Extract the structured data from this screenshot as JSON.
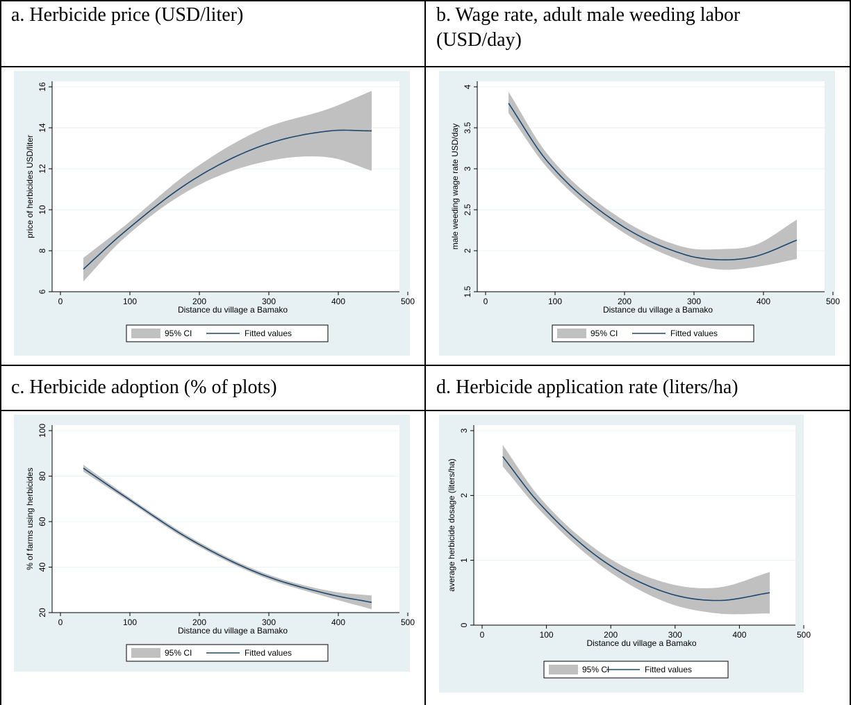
{
  "cells": {
    "a": "a. Herbicide price (USD/liter)",
    "b": "b. Wage rate, adult male weeding labor (USD/day)",
    "c": "c. Herbicide adoption (% of plots)",
    "d": "d. Herbicide application rate (liters/ha)"
  },
  "colors": {
    "fit_line": "#1a476f",
    "ci_band": "#c0c0c0",
    "panel_bg": "#e7f0f2",
    "plot_bg": "#ffffff"
  },
  "chart_data": [
    {
      "id": "a",
      "type": "area",
      "xlabel": "Distance du village a Bamako",
      "ylabel": "price of herbicides USD/liter",
      "xlim": [
        0,
        500
      ],
      "ylim": [
        6,
        16
      ],
      "xticks": [
        0,
        100,
        200,
        300,
        400,
        500
      ],
      "yticks": [
        6,
        8,
        10,
        12,
        14,
        16
      ],
      "legend": [
        "95% CI",
        "Fitted values"
      ],
      "legend_position": "bottom",
      "grid": true,
      "x": [
        45,
        100,
        200,
        300,
        400,
        460
      ],
      "fitted": [
        7.1,
        8.8,
        11.4,
        13.1,
        13.85,
        13.85
      ],
      "ci_lower": [
        6.5,
        8.5,
        11.0,
        12.3,
        12.55,
        11.9
      ],
      "ci_upper": [
        7.65,
        9.1,
        11.9,
        13.9,
        14.95,
        15.8
      ]
    },
    {
      "id": "b",
      "type": "area",
      "xlabel": "Distance du village a Bamako",
      "ylabel": "male weeding wage rate USD/day",
      "xlim": [
        0,
        500
      ],
      "ylim": [
        1.5,
        4
      ],
      "xticks": [
        0,
        100,
        200,
        300,
        400,
        500
      ],
      "yticks": [
        1.5,
        2,
        2.5,
        3,
        3.5,
        4
      ],
      "legend": [
        "95% CI",
        "Fitted values"
      ],
      "legend_position": "bottom",
      "grid": true,
      "x": [
        45,
        100,
        200,
        300,
        350,
        400,
        460
      ],
      "fitted": [
        3.8,
        3.1,
        2.35,
        1.95,
        1.89,
        1.93,
        2.13
      ],
      "ci_lower": [
        3.68,
        3.02,
        2.28,
        1.86,
        1.77,
        1.8,
        1.9
      ],
      "ci_upper": [
        3.94,
        3.19,
        2.43,
        2.04,
        2.02,
        2.07,
        2.38
      ]
    },
    {
      "id": "c",
      "type": "area",
      "xlabel": "Distance du village a Bamako",
      "ylabel": "% of farms using herbicides",
      "xlim": [
        0,
        500
      ],
      "ylim": [
        20,
        100
      ],
      "xticks": [
        0,
        100,
        200,
        300,
        400,
        500
      ],
      "yticks": [
        20,
        40,
        60,
        80,
        100
      ],
      "legend": [
        "95% CI",
        "Fitted values"
      ],
      "legend_position": "bottom",
      "grid": true,
      "x": [
        45,
        100,
        200,
        300,
        400,
        460
      ],
      "fitted": [
        83.5,
        72.0,
        52.0,
        37.0,
        28.0,
        24.5
      ],
      "ci_lower": [
        82.0,
        71.0,
        51.0,
        36.0,
        26.5,
        21.5
      ],
      "ci_upper": [
        85.0,
        73.0,
        53.0,
        38.0,
        29.5,
        27.5
      ]
    },
    {
      "id": "d",
      "type": "area",
      "xlabel": "Distance du village a Bamako",
      "ylabel": "average herbicide dosage (liters/ha)",
      "xlim": [
        0,
        500
      ],
      "ylim": [
        0,
        3
      ],
      "xticks": [
        0,
        100,
        200,
        300,
        400,
        500
      ],
      "yticks": [
        0,
        1,
        2,
        3
      ],
      "legend": [
        "95% CI",
        "Fitted values"
      ],
      "legend_position": "bottom",
      "grid": true,
      "x": [
        45,
        100,
        200,
        300,
        380,
        460
      ],
      "fitted": [
        2.6,
        1.9,
        1.0,
        0.5,
        0.38,
        0.5
      ],
      "ci_lower": [
        2.45,
        1.8,
        0.9,
        0.35,
        0.18,
        0.18
      ],
      "ci_upper": [
        2.78,
        2.0,
        1.1,
        0.65,
        0.58,
        0.82
      ]
    }
  ]
}
